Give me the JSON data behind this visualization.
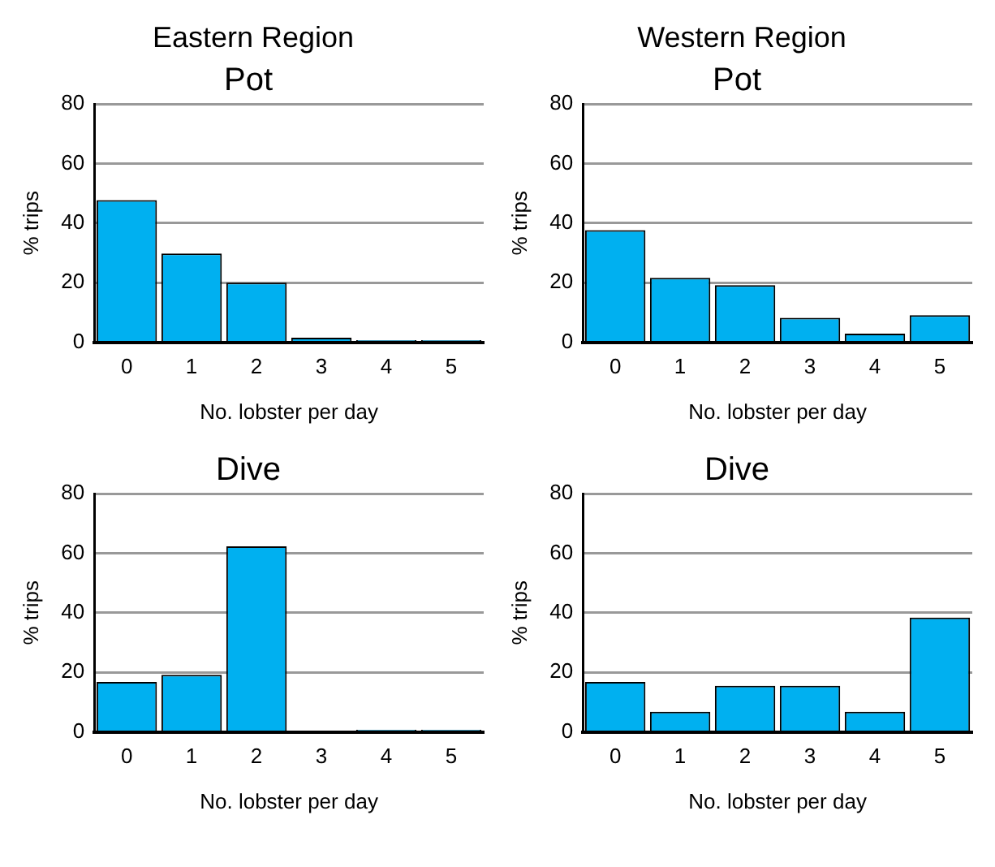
{
  "chart_data": [
    {
      "type": "bar",
      "title": "Pot",
      "annotations": [
        "Eastern Region"
      ],
      "xlabel": "No. lobster per day",
      "ylabel": "% trips",
      "categories": [
        "0",
        "1",
        "2",
        "3",
        "4",
        "5"
      ],
      "values": [
        47.7,
        29.8,
        20,
        1.5,
        0.7,
        0.7
      ],
      "color": "#00b0f0",
      "ylim": [
        0,
        80
      ],
      "yticks": [
        0,
        20,
        40,
        60,
        80
      ],
      "grid": "y"
    },
    {
      "type": "bar",
      "title": "Pot",
      "annotations": [
        "Western Region"
      ],
      "xlabel": "No. lobster per day",
      "ylabel": "% trips",
      "categories": [
        "0",
        "1",
        "2",
        "3",
        "4",
        "5"
      ],
      "values": [
        37.6,
        21.6,
        19.2,
        8.2,
        2.9,
        9.1
      ],
      "color": "#00b0f0",
      "ylim": [
        0,
        80
      ],
      "yticks": [
        0,
        20,
        40,
        60,
        80
      ],
      "grid": "y"
    },
    {
      "type": "bar",
      "title": "Dive",
      "xlabel": "No. lobster per day",
      "ylabel": "% trips",
      "categories": [
        "0",
        "1",
        "2",
        "3",
        "4",
        "5"
      ],
      "values": [
        16.8,
        19.2,
        62.3,
        0,
        0.7,
        0.7
      ],
      "color": "#00b0f0",
      "ylim": [
        0,
        80
      ],
      "yticks": [
        0,
        20,
        40,
        60,
        80
      ],
      "grid": "y"
    },
    {
      "type": "bar",
      "title": "Dive",
      "xlabel": "No. lobster per day",
      "ylabel": "% trips",
      "categories": [
        "0",
        "1",
        "2",
        "3",
        "4",
        "5"
      ],
      "values": [
        16.8,
        6.8,
        15.5,
        15.5,
        6.8,
        38.4
      ],
      "color": "#00b0f0",
      "ylim": [
        0,
        80
      ],
      "yticks": [
        0,
        20,
        40,
        60,
        80
      ],
      "grid": "y"
    }
  ]
}
